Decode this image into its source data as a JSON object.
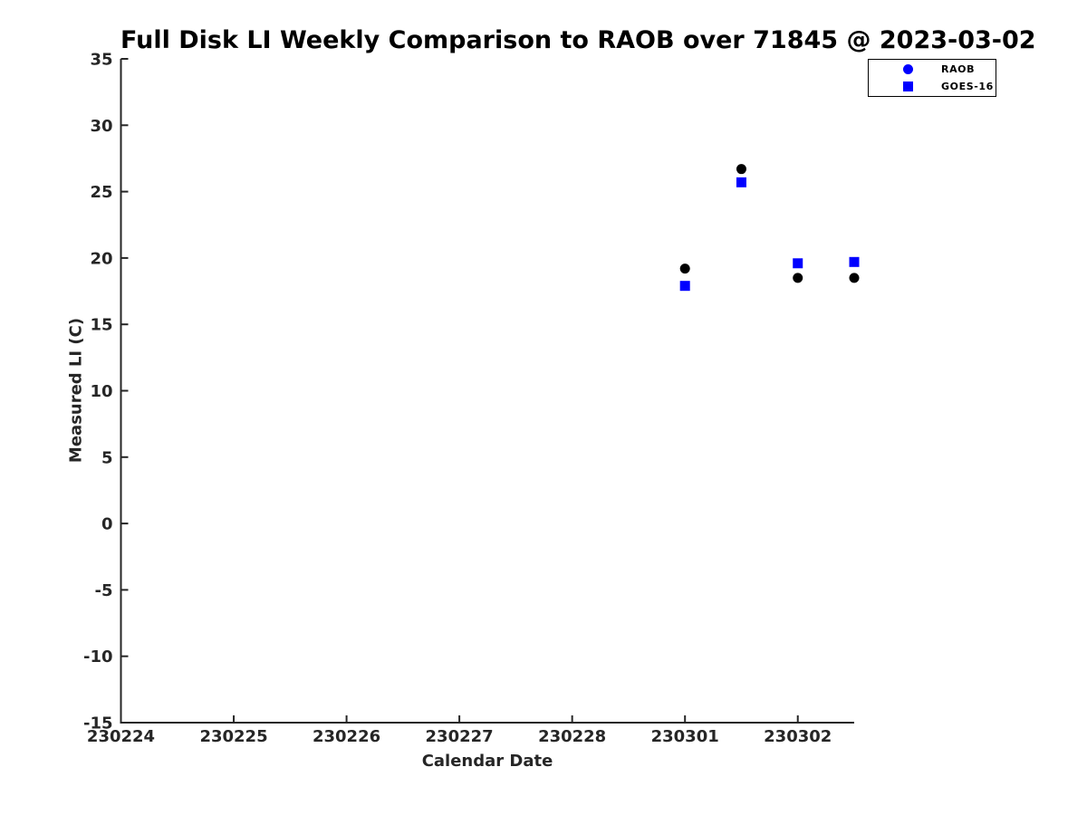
{
  "page": {
    "background": "#FFFFFF"
  },
  "chart_data": {
    "type": "scatter",
    "title": "Full Disk LI Weekly Comparison to RAOB over 71845 @ 2023-03-02",
    "xlabel": "Calendar Date",
    "ylabel": "Measured LI (C)",
    "x_axis": {
      "unit": "days since 230224",
      "tick_labels": [
        "230224",
        "230225",
        "230226",
        "230227",
        "230228",
        "230301",
        "230302"
      ],
      "tick_positions": [
        0,
        1,
        2,
        3,
        4,
        5,
        6
      ],
      "xlim": [
        0,
        6.5
      ]
    },
    "y_axis": {
      "ticks": [
        -15,
        -10,
        -5,
        0,
        5,
        10,
        15,
        20,
        25,
        30,
        35
      ],
      "ylim": [
        -15,
        35
      ]
    },
    "grid": false,
    "legend": {
      "position": "top-right",
      "entries": [
        "RAOB",
        "GOES-16"
      ]
    },
    "series": [
      {
        "name": "RAOB",
        "marker": "circle",
        "marker_color": "#000000",
        "legend_marker_color": "#0000FF",
        "points": [
          {
            "x": 5.0,
            "y": 19.2
          },
          {
            "x": 5.5,
            "y": 26.7
          },
          {
            "x": 6.0,
            "y": 18.5
          },
          {
            "x": 6.5,
            "y": 18.5
          }
        ]
      },
      {
        "name": "GOES-16",
        "marker": "square",
        "marker_color": "#0000FF",
        "legend_marker_color": "#0000FF",
        "points": [
          {
            "x": 5.0,
            "y": 17.9
          },
          {
            "x": 5.5,
            "y": 25.7
          },
          {
            "x": 6.0,
            "y": 19.6
          },
          {
            "x": 6.5,
            "y": 19.7
          }
        ]
      }
    ],
    "colors": {
      "axis": "#262626",
      "title": "#000000",
      "marker_blue": "#0000FF",
      "marker_black": "#000000"
    }
  }
}
